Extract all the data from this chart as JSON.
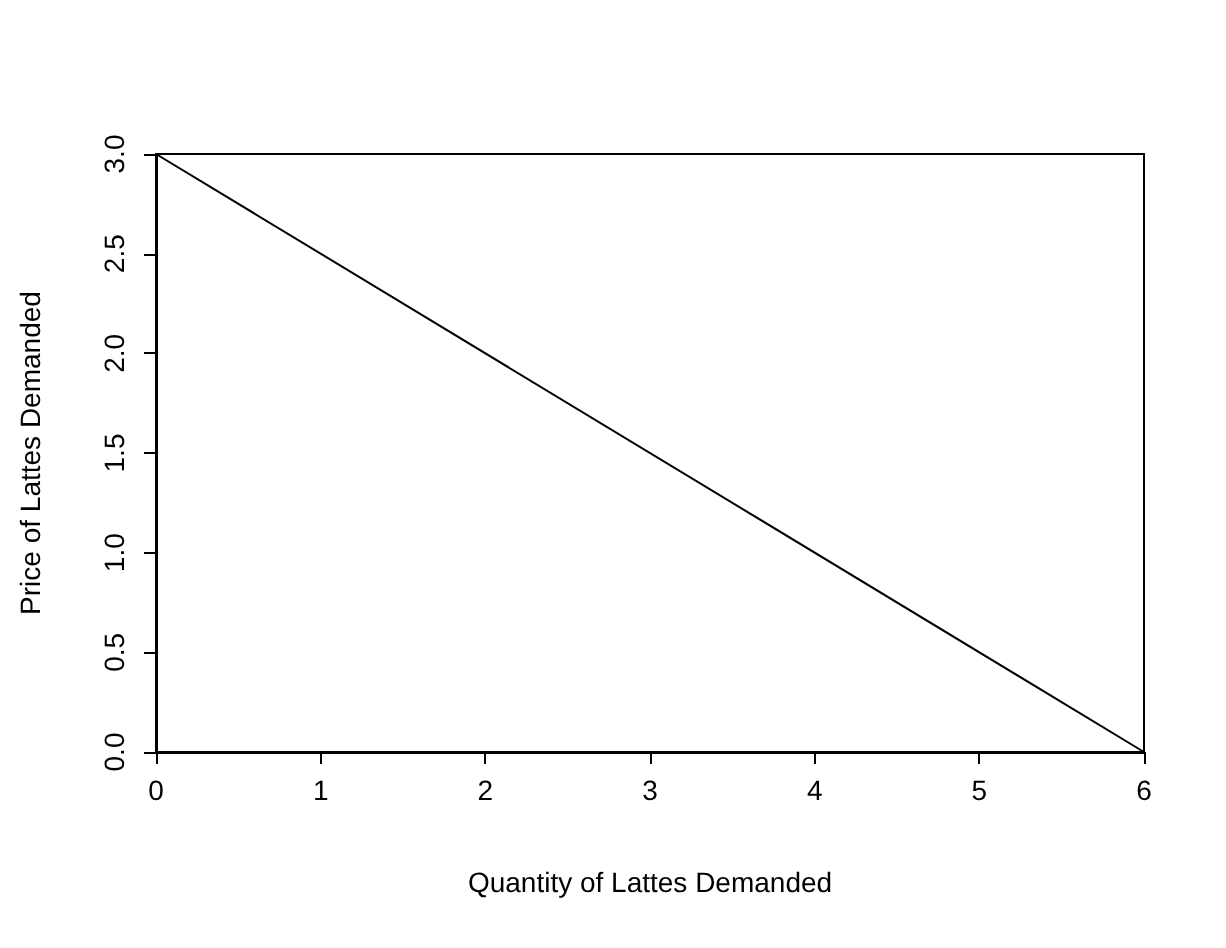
{
  "chart_data": {
    "type": "line",
    "xlabel": "Quantity of Lattes Demanded",
    "ylabel": "Price of Lattes Demanded",
    "x": [
      0,
      6
    ],
    "series": [
      {
        "color": "#000000",
        "values": [
          3,
          0
        ]
      }
    ],
    "xlim": [
      0,
      6
    ],
    "ylim": [
      0,
      3
    ],
    "xticks": [
      0,
      1,
      2,
      3,
      4,
      5,
      6
    ],
    "yticks": [
      {
        "value": 0,
        "label": "0.0"
      },
      0.5,
      {
        "value": 1,
        "label": "1.0"
      },
      1.5,
      {
        "value": 2,
        "label": "2.0"
      },
      2.5,
      {
        "value": 3,
        "label": "3.0"
      }
    ],
    "grid": false,
    "marker": "none",
    "line_style": "solid"
  }
}
